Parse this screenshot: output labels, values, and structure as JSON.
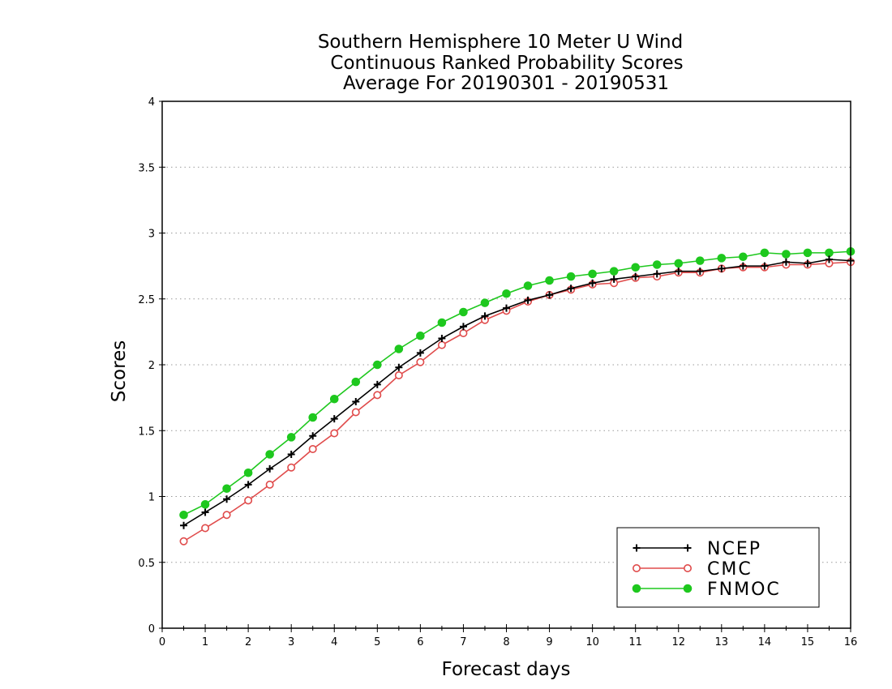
{
  "chart_data": {
    "type": "line",
    "title": [
      "Southern Hemisphere 10 Meter U Wind",
      "Continuous Ranked Probability Scores",
      "Average For 20190301 - 20190531"
    ],
    "xlabel": "Forecast days",
    "ylabel": "Scores",
    "xlim": [
      0,
      16
    ],
    "ylim": [
      0,
      4
    ],
    "xticks": [
      0,
      1,
      2,
      3,
      4,
      5,
      6,
      7,
      8,
      9,
      10,
      11,
      12,
      13,
      14,
      15,
      16
    ],
    "yticks": [
      0,
      0.5,
      1,
      1.5,
      2,
      2.5,
      3,
      3.5,
      4
    ],
    "xtick_labels": [
      "0",
      "1",
      "2",
      "3",
      "4",
      "5",
      "6",
      "7",
      "8",
      "9",
      "10",
      "11",
      "12",
      "13",
      "14",
      "15",
      "16"
    ],
    "ytick_labels": [
      "0",
      "0.5",
      "1",
      "1.5",
      "2",
      "2.5",
      "3",
      "3.5",
      "4"
    ],
    "grid": "horizontal-dotted",
    "legend_position": "bottom-right",
    "x": [
      0.5,
      1,
      1.5,
      2,
      2.5,
      3,
      3.5,
      4,
      4.5,
      5,
      5.5,
      6,
      6.5,
      7,
      7.5,
      8,
      8.5,
      9,
      9.5,
      10,
      10.5,
      11,
      11.5,
      12,
      12.5,
      13,
      13.5,
      14,
      14.5,
      15,
      15.5,
      16
    ],
    "series": [
      {
        "name": "NCEP",
        "color": "#000000",
        "marker": "plus",
        "values": [
          0.78,
          0.88,
          0.98,
          1.09,
          1.21,
          1.32,
          1.46,
          1.59,
          1.72,
          1.85,
          1.98,
          2.09,
          2.2,
          2.29,
          2.37,
          2.43,
          2.49,
          2.53,
          2.58,
          2.62,
          2.65,
          2.67,
          2.69,
          2.71,
          2.71,
          2.73,
          2.75,
          2.75,
          2.78,
          2.77,
          2.8,
          2.79
        ]
      },
      {
        "name": "CMC",
        "color": "#e04b4b",
        "marker": "open-circle",
        "values": [
          0.66,
          0.76,
          0.86,
          0.97,
          1.09,
          1.22,
          1.36,
          1.48,
          1.64,
          1.77,
          1.92,
          2.02,
          2.15,
          2.24,
          2.34,
          2.41,
          2.48,
          2.53,
          2.57,
          2.61,
          2.62,
          2.66,
          2.67,
          2.7,
          2.7,
          2.73,
          2.74,
          2.74,
          2.76,
          2.76,
          2.77,
          2.78
        ]
      },
      {
        "name": "FNMOC",
        "color": "#1ec81e",
        "marker": "filled-circle",
        "values": [
          0.86,
          0.94,
          1.06,
          1.18,
          1.32,
          1.45,
          1.6,
          1.74,
          1.87,
          2.0,
          2.12,
          2.22,
          2.32,
          2.4,
          2.47,
          2.54,
          2.6,
          2.64,
          2.67,
          2.69,
          2.71,
          2.74,
          2.76,
          2.77,
          2.79,
          2.81,
          2.82,
          2.85,
          2.84,
          2.85,
          2.85,
          2.86
        ]
      }
    ]
  }
}
